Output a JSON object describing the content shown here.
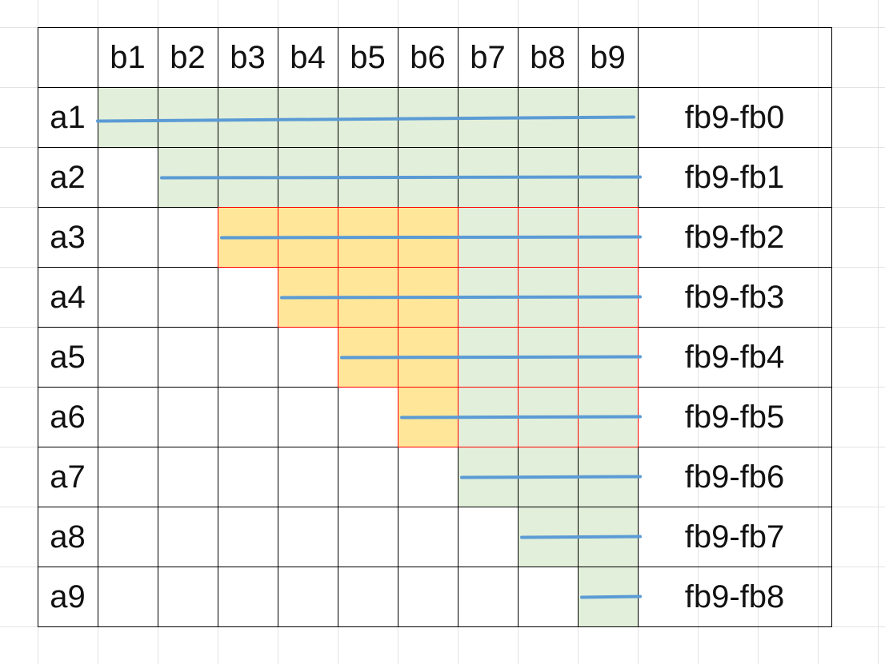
{
  "grid": {
    "column_headers": [
      "b1",
      "b2",
      "b3",
      "b4",
      "b5",
      "b6",
      "b7",
      "b8",
      "b9"
    ],
    "row_headers": [
      "a1",
      "a2",
      "a3",
      "a4",
      "a5",
      "a6",
      "a7",
      "a8",
      "a9"
    ],
    "row_labels": [
      "fb9-fb0",
      "fb9-fb1",
      "fb9-fb2",
      "fb9-fb3",
      "fb9-fb4",
      "fb9-fb5",
      "fb9-fb6",
      "fb9-fb7",
      "fb9-fb8"
    ],
    "highlighted_rows": [
      {
        "row": "a1",
        "from_col": "b1",
        "to_col": "b9"
      },
      {
        "row": "a2",
        "from_col": "b2",
        "to_col": "b9"
      },
      {
        "row": "a3",
        "from_col": "b3",
        "to_col": "b9"
      },
      {
        "row": "a4",
        "from_col": "b4",
        "to_col": "b9"
      },
      {
        "row": "a5",
        "from_col": "b5",
        "to_col": "b9"
      },
      {
        "row": "a6",
        "from_col": "b6",
        "to_col": "b9"
      },
      {
        "row": "a7",
        "from_col": "b7",
        "to_col": "b9"
      },
      {
        "row": "a8",
        "from_col": "b8",
        "to_col": "b9"
      },
      {
        "row": "a9",
        "from_col": "b9",
        "to_col": "b9"
      }
    ],
    "yellow_block": {
      "rows": [
        "a3",
        "a6"
      ],
      "cols": [
        "b3",
        "b6"
      ]
    },
    "red_outlined_block": {
      "rows": [
        "a3",
        "a6"
      ],
      "cols": [
        "b3",
        "b9"
      ]
    }
  },
  "colors": {
    "green_fill": "#e2efda",
    "yellow_fill": "#ffe699",
    "red_border": "#ff0000",
    "bar_blue": "#5b9bd5",
    "grid_line": "#000000",
    "sheet_gridline": "#e3e3e3"
  }
}
